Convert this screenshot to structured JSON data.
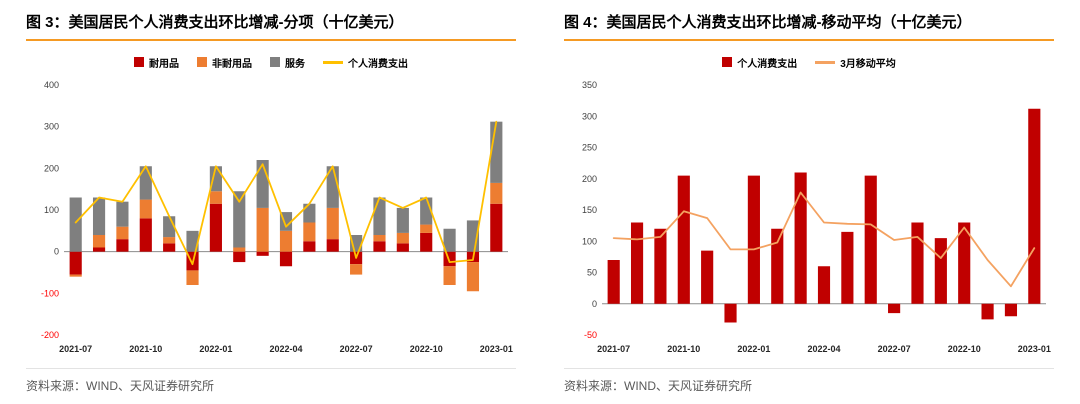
{
  "colors": {
    "title_rule": "#F59A23",
    "axis_text": "#3F3F3F",
    "axis_negative": "#FF0000",
    "x_label": "#262626",
    "zero_line": "#8C8C8C",
    "source_text": "#595959",
    "durable_bar": "#C00000",
    "nondurable_bar": "#ED7D31",
    "services_bar": "#7F7F7F",
    "pce_line": "#FFC000",
    "pce_bar": "#C00000",
    "moving_avg_line": "#F4A261"
  },
  "charts": [
    {
      "title": "图 3：美国居民个人消费支出环比增减-分项（十亿美元）",
      "source": "资料来源：WIND、天风证券研究所"
    },
    {
      "title": "图 4：美国居民个人消费支出环比增减-移动平均（十亿美元）",
      "source": "资料来源：WIND、天风证券研究所"
    }
  ],
  "chart_data": [
    {
      "type": "bar",
      "stacked": true,
      "title": "美国居民个人消费支出环比增减-分项（十亿美元）",
      "xlabel": "",
      "ylabel": "",
      "ylim": [
        -200,
        400
      ],
      "ytick_step": 100,
      "grid": false,
      "legend_position": "top",
      "categories": [
        "2021-07",
        "2021-08",
        "2021-09",
        "2021-10",
        "2021-11",
        "2021-12",
        "2022-01",
        "2022-02",
        "2022-03",
        "2022-04",
        "2022-05",
        "2022-06",
        "2022-07",
        "2022-08",
        "2022-09",
        "2022-10",
        "2022-11",
        "2022-12",
        "2023-01"
      ],
      "x_tick_labels": [
        "2021-07",
        "2021-10",
        "2022-01",
        "2022-04",
        "2022-07",
        "2022-10",
        "2023-01"
      ],
      "series": [
        {
          "name": "耐用品",
          "type": "bar",
          "color": "#C00000",
          "values": [
            -55,
            10,
            30,
            80,
            20,
            -45,
            115,
            -25,
            -10,
            -35,
            25,
            30,
            -30,
            25,
            20,
            45,
            -35,
            -25,
            115
          ]
        },
        {
          "name": "非耐用品",
          "type": "bar",
          "color": "#ED7D31",
          "values": [
            -5,
            30,
            30,
            45,
            15,
            -35,
            30,
            10,
            105,
            50,
            45,
            75,
            -25,
            15,
            25,
            20,
            -45,
            -70,
            50
          ]
        },
        {
          "name": "服务",
          "type": "bar",
          "color": "#7F7F7F",
          "values": [
            130,
            90,
            60,
            80,
            50,
            50,
            60,
            135,
            115,
            45,
            45,
            100,
            40,
            90,
            60,
            65,
            55,
            75,
            147
          ]
        },
        {
          "name": "个人消费支出",
          "type": "line",
          "color": "#FFC000",
          "values": [
            70,
            130,
            120,
            205,
            85,
            -30,
            205,
            120,
            210,
            60,
            115,
            205,
            -15,
            130,
            105,
            130,
            -25,
            -20,
            312
          ]
        }
      ]
    },
    {
      "type": "bar",
      "stacked": false,
      "title": "美国居民个人消费支出环比增减-移动平均（十亿美元）",
      "xlabel": "",
      "ylabel": "",
      "ylim": [
        -50,
        350
      ],
      "ytick_step": 50,
      "grid": false,
      "legend_position": "top",
      "categories": [
        "2021-07",
        "2021-08",
        "2021-09",
        "2021-10",
        "2021-11",
        "2021-12",
        "2022-01",
        "2022-02",
        "2022-03",
        "2022-04",
        "2022-05",
        "2022-06",
        "2022-07",
        "2022-08",
        "2022-09",
        "2022-10",
        "2022-11",
        "2022-12",
        "2023-01"
      ],
      "x_tick_labels": [
        "2021-07",
        "2021-10",
        "2022-01",
        "2022-04",
        "2022-07",
        "2022-10",
        "2023-01"
      ],
      "series": [
        {
          "name": "个人消费支出",
          "type": "bar",
          "color": "#C00000",
          "values": [
            70,
            130,
            120,
            205,
            85,
            -30,
            205,
            120,
            210,
            60,
            115,
            205,
            -15,
            130,
            105,
            130,
            -25,
            -20,
            312
          ]
        },
        {
          "name": "3月移动平均",
          "type": "line",
          "color": "#F4A261",
          "values": [
            105,
            103,
            107,
            148,
            137,
            87,
            87,
            98,
            178,
            130,
            128,
            127,
            102,
            107,
            73,
            122,
            70,
            28,
            89
          ]
        }
      ]
    }
  ]
}
